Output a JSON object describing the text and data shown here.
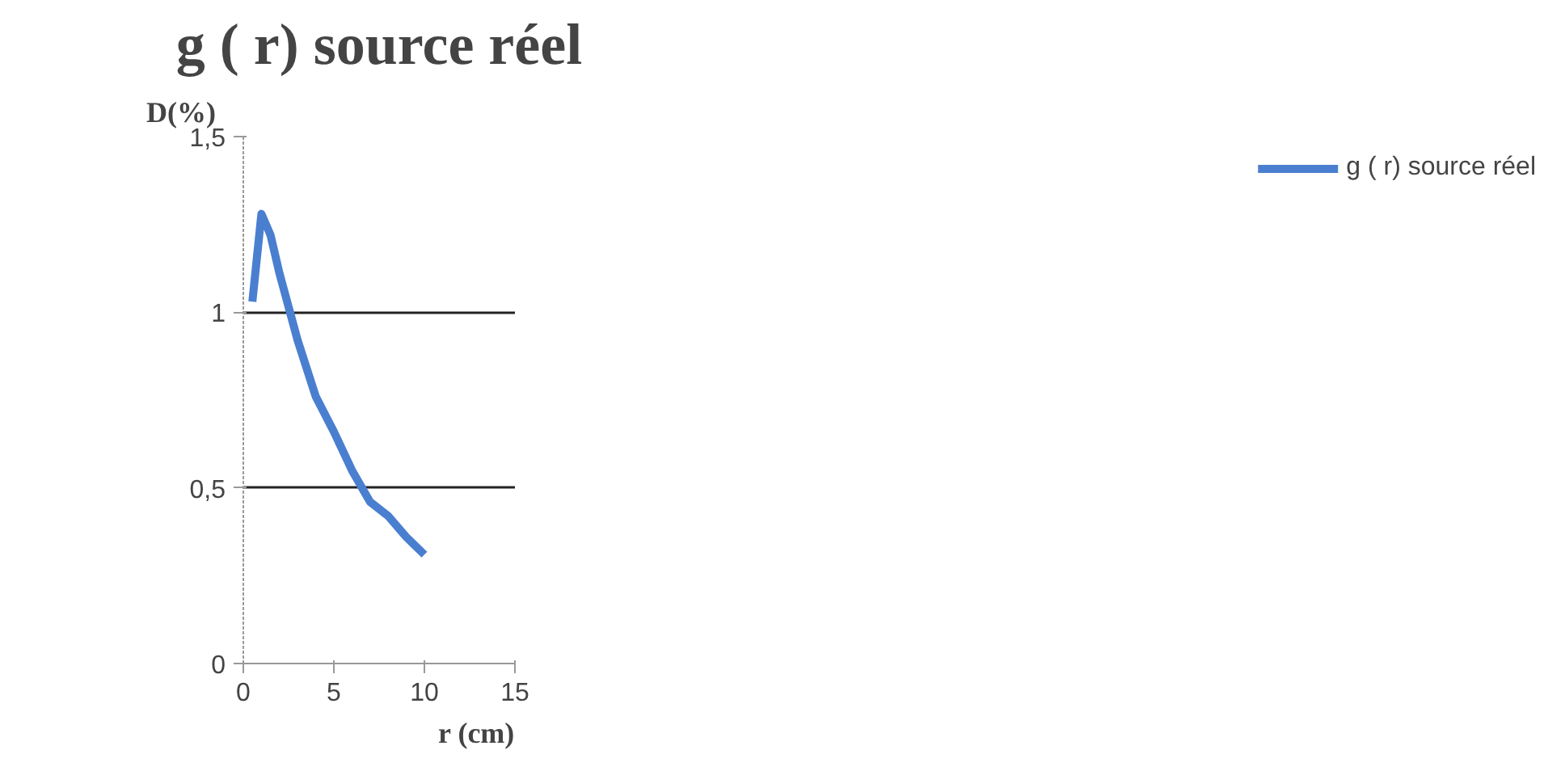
{
  "chart_data": {
    "type": "line",
    "title": "g ( r) source réel",
    "xlabel": "r (cm)",
    "ylabel": "D(%)",
    "x": [
      0.5,
      1,
      1.5,
      2,
      3,
      4,
      5,
      6,
      7,
      8,
      9,
      10
    ],
    "series": [
      {
        "name": "g ( r) source réel",
        "color": "#4a7fd0",
        "values": [
          1.03,
          1.28,
          1.22,
          1.11,
          0.92,
          0.76,
          0.66,
          0.55,
          0.46,
          0.42,
          0.36,
          0.31
        ]
      }
    ],
    "xlim": [
      0,
      15
    ],
    "xticks": [
      0,
      5,
      10,
      15
    ],
    "ylim": [
      0,
      1.5
    ],
    "yticks": [
      0,
      {
        "value": 0.5,
        "label": "0,5"
      },
      1,
      {
        "value": 1.5,
        "label": "1,5"
      }
    ],
    "grid": "y",
    "legend": "right",
    "marker": "none",
    "line_style": "solid"
  }
}
